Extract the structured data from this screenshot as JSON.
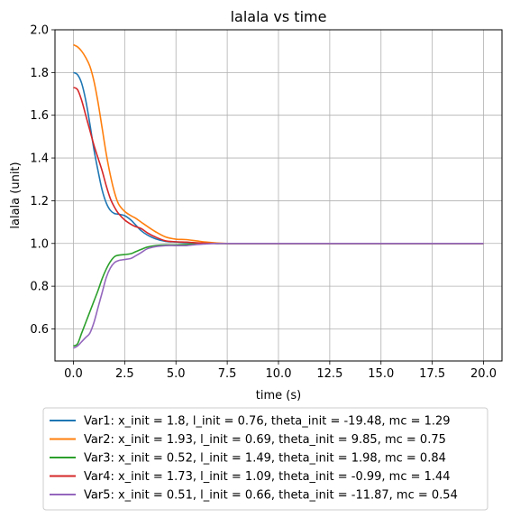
{
  "chart_data": {
    "type": "line",
    "title": "lalala vs time",
    "xlabel": "time (s)",
    "ylabel": "lalala (unit)",
    "xlim": [
      -0.9,
      20.9
    ],
    "ylim": [
      0.45,
      2.0
    ],
    "xticks": [
      0.0,
      2.5,
      5.0,
      7.5,
      10.0,
      12.5,
      15.0,
      17.5,
      20.0
    ],
    "xtick_labels": [
      "0.0",
      "2.5",
      "5.0",
      "7.5",
      "10.0",
      "12.5",
      "15.0",
      "17.5",
      "20.0"
    ],
    "yticks": [
      0.6,
      0.8,
      1.0,
      1.2,
      1.4,
      1.6,
      1.8,
      2.0
    ],
    "ytick_labels": [
      "0.6",
      "0.8",
      "1.0",
      "1.2",
      "1.4",
      "1.6",
      "1.8",
      "2.0"
    ],
    "grid": true,
    "legend_position": "below",
    "series": [
      {
        "name": "Var1: x_init = 1.8, l_init = 0.76, theta_init = -19.48, mc = 1.29",
        "color": "#1f77b4",
        "x": [
          0.0,
          0.2,
          0.4,
          0.6,
          0.8,
          1.0,
          1.2,
          1.4,
          1.6,
          1.8,
          2.0,
          2.2,
          2.5,
          2.8,
          3.0,
          3.3,
          3.6,
          4.0,
          4.5,
          5.0,
          5.5,
          6.0,
          6.5,
          7.0,
          7.5,
          8.0,
          10.0,
          12.5,
          15.0,
          17.5,
          20.0
        ],
        "y": [
          1.8,
          1.79,
          1.75,
          1.67,
          1.56,
          1.44,
          1.34,
          1.25,
          1.19,
          1.155,
          1.14,
          1.137,
          1.13,
          1.11,
          1.09,
          1.06,
          1.04,
          1.022,
          1.01,
          1.007,
          1.004,
          1.002,
          1.001,
          1.0,
          1.0,
          1.0,
          1.0,
          1.0,
          1.0,
          1.0,
          1.0
        ]
      },
      {
        "name": "Var2: x_init = 1.93, l_init = 0.69, theta_init = 9.85, mc = 0.75",
        "color": "#ff7f0e",
        "x": [
          0.0,
          0.2,
          0.4,
          0.6,
          0.8,
          1.0,
          1.2,
          1.4,
          1.6,
          1.8,
          2.0,
          2.2,
          2.5,
          2.8,
          3.0,
          3.3,
          3.6,
          4.0,
          4.5,
          5.0,
          5.5,
          6.0,
          6.5,
          7.0,
          7.5,
          8.0,
          10.0,
          12.5,
          15.0,
          17.5,
          20.0
        ],
        "y": [
          1.93,
          1.92,
          1.9,
          1.87,
          1.83,
          1.76,
          1.66,
          1.54,
          1.42,
          1.32,
          1.24,
          1.185,
          1.15,
          1.13,
          1.12,
          1.1,
          1.08,
          1.055,
          1.03,
          1.02,
          1.018,
          1.012,
          1.006,
          1.002,
          1.0,
          1.0,
          1.0,
          1.0,
          1.0,
          1.0,
          1.0
        ]
      },
      {
        "name": "Var3: x_init = 0.52, l_init = 1.49, theta_init = 1.98, mc = 0.84",
        "color": "#2ca02c",
        "x": [
          0.0,
          0.2,
          0.4,
          0.6,
          0.8,
          1.0,
          1.2,
          1.4,
          1.6,
          1.8,
          2.0,
          2.2,
          2.5,
          2.8,
          3.0,
          3.3,
          3.6,
          4.0,
          4.5,
          5.0,
          5.5,
          6.0,
          6.5,
          7.0,
          7.5,
          8.0,
          10.0,
          12.5,
          15.0,
          17.5,
          20.0
        ],
        "y": [
          0.52,
          0.53,
          0.58,
          0.63,
          0.68,
          0.73,
          0.78,
          0.835,
          0.88,
          0.915,
          0.938,
          0.945,
          0.948,
          0.952,
          0.96,
          0.972,
          0.983,
          0.99,
          0.993,
          0.993,
          0.995,
          0.998,
          1.0,
          1.0,
          1.0,
          1.0,
          1.0,
          1.0,
          1.0,
          1.0,
          1.0
        ]
      },
      {
        "name": "Var4: x_init = 1.73, l_init = 1.09, theta_init = -0.99, mc = 1.44",
        "color": "#d62728",
        "x": [
          0.0,
          0.2,
          0.4,
          0.6,
          0.8,
          1.0,
          1.2,
          1.4,
          1.6,
          1.8,
          2.0,
          2.2,
          2.5,
          2.8,
          3.0,
          3.3,
          3.6,
          4.0,
          4.5,
          5.0,
          5.5,
          6.0,
          6.5,
          7.0,
          7.5,
          8.0,
          10.0,
          12.5,
          15.0,
          17.5,
          20.0
        ],
        "y": [
          1.73,
          1.72,
          1.67,
          1.6,
          1.53,
          1.46,
          1.4,
          1.34,
          1.27,
          1.21,
          1.17,
          1.14,
          1.11,
          1.09,
          1.08,
          1.07,
          1.05,
          1.03,
          1.012,
          1.008,
          1.006,
          1.003,
          1.001,
          1.0,
          1.0,
          1.0,
          1.0,
          1.0,
          1.0,
          1.0,
          1.0
        ]
      },
      {
        "name": "Var5: x_init = 0.51, l_init = 0.66, theta_init = -11.87, mc = 0.54",
        "color": "#9467bd",
        "x": [
          0.0,
          0.2,
          0.4,
          0.6,
          0.8,
          1.0,
          1.2,
          1.4,
          1.6,
          1.8,
          2.0,
          2.2,
          2.5,
          2.8,
          3.0,
          3.3,
          3.6,
          4.0,
          4.5,
          5.0,
          5.5,
          6.0,
          6.5,
          7.0,
          7.5,
          8.0,
          10.0,
          12.5,
          15.0,
          17.5,
          20.0
        ],
        "y": [
          0.51,
          0.52,
          0.54,
          0.56,
          0.58,
          0.63,
          0.7,
          0.77,
          0.84,
          0.885,
          0.91,
          0.92,
          0.925,
          0.93,
          0.94,
          0.957,
          0.975,
          0.985,
          0.99,
          0.99,
          0.99,
          0.995,
          0.998,
          1.0,
          1.0,
          1.0,
          1.0,
          1.0,
          1.0,
          1.0,
          1.0
        ]
      }
    ]
  }
}
